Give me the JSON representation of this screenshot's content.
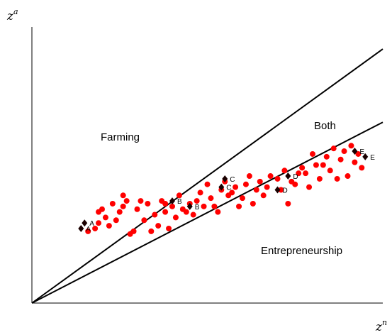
{
  "chart_data": {
    "type": "scatter",
    "title": "",
    "xlabel": {
      "base": "z",
      "sup": "n"
    },
    "ylabel": {
      "base": "z",
      "sup": "a"
    },
    "xlim": [
      0,
      10
    ],
    "ylim": [
      0,
      10
    ],
    "grid": false,
    "region_labels": {
      "farming": "Farming",
      "both": "Both",
      "entrepreneurship": "Entrepreneurship"
    },
    "boundary_lines": [
      {
        "slope": 0.92,
        "intercept": 0,
        "x_end": 10
      },
      {
        "slope": 0.655,
        "intercept": 0,
        "x_end": 10
      }
    ],
    "series": [
      {
        "marker": "circle",
        "color": "#ff0000",
        "points": [
          [
            1.6,
            2.6
          ],
          [
            1.8,
            2.7
          ],
          [
            1.9,
            2.9
          ],
          [
            2.1,
            3.1
          ],
          [
            2.3,
            3.6
          ],
          [
            2.5,
            3.3
          ],
          [
            2.6,
            3.9
          ],
          [
            2.7,
            3.7
          ],
          [
            2.2,
            2.8
          ],
          [
            2.4,
            3.0
          ],
          [
            2.8,
            2.5
          ],
          [
            3.0,
            3.4
          ],
          [
            3.2,
            3.0
          ],
          [
            3.3,
            3.6
          ],
          [
            3.5,
            3.2
          ],
          [
            3.6,
            2.8
          ],
          [
            3.7,
            3.7
          ],
          [
            3.8,
            3.3
          ],
          [
            3.9,
            2.7
          ],
          [
            4.0,
            3.5
          ],
          [
            4.2,
            3.9
          ],
          [
            4.3,
            3.4
          ],
          [
            4.5,
            3.6
          ],
          [
            4.6,
            3.2
          ],
          [
            4.8,
            4.0
          ],
          [
            5.0,
            4.3
          ],
          [
            5.1,
            3.8
          ],
          [
            5.2,
            3.5
          ],
          [
            5.4,
            4.1
          ],
          [
            5.5,
            4.4
          ],
          [
            5.6,
            3.9
          ],
          [
            5.8,
            4.2
          ],
          [
            6.0,
            3.8
          ],
          [
            6.1,
            4.3
          ],
          [
            6.2,
            4.6
          ],
          [
            6.4,
            4.1
          ],
          [
            6.5,
            4.4
          ],
          [
            6.6,
            3.9
          ],
          [
            6.8,
            4.6
          ],
          [
            7.0,
            4.5
          ],
          [
            7.1,
            4.1
          ],
          [
            7.2,
            4.8
          ],
          [
            7.4,
            4.4
          ],
          [
            7.5,
            4.3
          ],
          [
            7.7,
            4.9
          ],
          [
            7.8,
            4.7
          ],
          [
            8.0,
            5.4
          ],
          [
            8.1,
            5.0
          ],
          [
            8.2,
            4.5
          ],
          [
            8.4,
            5.3
          ],
          [
            8.5,
            4.8
          ],
          [
            8.6,
            5.6
          ],
          [
            8.8,
            5.2
          ],
          [
            8.9,
            5.5
          ],
          [
            9.0,
            4.6
          ],
          [
            9.1,
            5.7
          ],
          [
            9.3,
            5.4
          ],
          [
            9.4,
            4.9
          ],
          [
            8.3,
            5.0
          ],
          [
            7.9,
            4.2
          ],
          [
            6.3,
            3.6
          ],
          [
            5.9,
            3.5
          ],
          [
            5.3,
            3.3
          ],
          [
            4.9,
            3.5
          ],
          [
            4.4,
            3.3
          ],
          [
            4.1,
            3.1
          ],
          [
            3.4,
            2.6
          ],
          [
            2.9,
            2.6
          ],
          [
            2.0,
            3.4
          ],
          [
            1.9,
            3.3
          ],
          [
            2.6,
            3.5
          ],
          [
            3.1,
            3.7
          ],
          [
            4.7,
            3.7
          ],
          [
            5.7,
            4.0
          ],
          [
            6.7,
            4.2
          ],
          [
            7.3,
            3.6
          ],
          [
            8.7,
            4.5
          ],
          [
            9.2,
            5.1
          ],
          [
            3.8,
            3.6
          ],
          [
            7.6,
            4.7
          ]
        ]
      },
      {
        "marker": "diamond",
        "color": "#1a0000",
        "points": [
          [
            1.4,
            2.7
          ],
          [
            1.5,
            2.9
          ],
          [
            4.0,
            3.7
          ],
          [
            4.5,
            3.5
          ],
          [
            5.4,
            4.2
          ],
          [
            5.5,
            4.5
          ],
          [
            7.0,
            4.1
          ],
          [
            7.3,
            4.6
          ],
          [
            9.2,
            5.5
          ],
          [
            9.5,
            5.3
          ]
        ]
      }
    ],
    "point_labels": [
      {
        "x": 1.4,
        "y": 2.7,
        "text": "A"
      },
      {
        "x": 1.5,
        "y": 2.9,
        "text": "A"
      },
      {
        "x": 4.0,
        "y": 3.7,
        "text": "B"
      },
      {
        "x": 4.5,
        "y": 3.5,
        "text": "B"
      },
      {
        "x": 5.4,
        "y": 4.2,
        "text": "C"
      },
      {
        "x": 5.5,
        "y": 4.5,
        "text": "C"
      },
      {
        "x": 7.0,
        "y": 4.1,
        "text": "D"
      },
      {
        "x": 7.3,
        "y": 4.6,
        "text": "D"
      },
      {
        "x": 9.2,
        "y": 5.5,
        "text": "E"
      },
      {
        "x": 9.5,
        "y": 5.3,
        "text": "E"
      }
    ]
  }
}
